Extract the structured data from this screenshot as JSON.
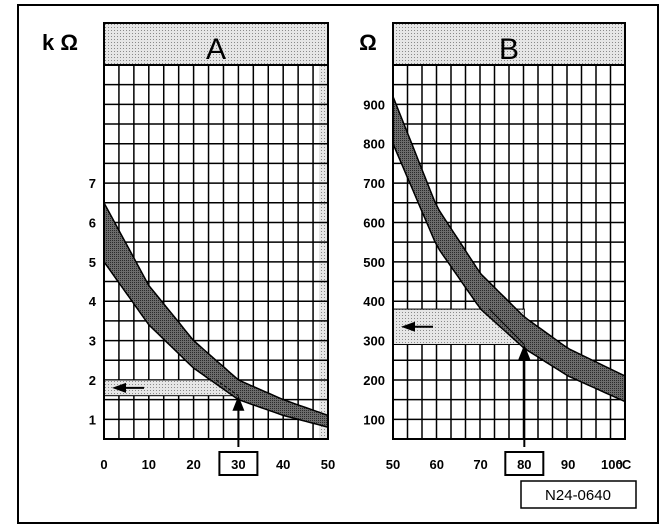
{
  "figure": {
    "reference": "N24-0640"
  },
  "chart_data": [
    {
      "type": "area",
      "panel_label": "A",
      "ylabel": "k Ω",
      "xlim": [
        0,
        50
      ],
      "ylim": [
        0.5,
        10
      ],
      "x_ticks": [
        "0",
        "10",
        "20",
        "30",
        "40",
        "50"
      ],
      "y_ticks": [
        "1",
        "2",
        "3",
        "4",
        "5",
        "6",
        "7"
      ],
      "series": [
        {
          "x": [
            0,
            10,
            20,
            30,
            40,
            50
          ],
          "upper": [
            6.5,
            4.4,
            3.0,
            2.0,
            1.5,
            1.1
          ],
          "lower": [
            5.0,
            3.4,
            2.3,
            1.5,
            1.1,
            0.8
          ]
        }
      ],
      "shaded_x_range": [
        48,
        50
      ],
      "highlight_x": "30",
      "highlight": {
        "x": 30,
        "y_range": [
          1.6,
          2.0
        ]
      }
    },
    {
      "type": "area",
      "panel_label": "B",
      "ylabel": "Ω",
      "xunit": "°C",
      "xlim": [
        50,
        103
      ],
      "ylim": [
        50,
        1000
      ],
      "x_ticks": [
        "50",
        "60",
        "70",
        "80",
        "90",
        "100"
      ],
      "y_ticks": [
        "100",
        "200",
        "300",
        "400",
        "500",
        "600",
        "700",
        "800",
        "900"
      ],
      "series": [
        {
          "x": [
            50,
            60,
            70,
            80,
            90,
            103
          ],
          "upper": [
            920,
            640,
            470,
            360,
            280,
            210
          ],
          "lower": [
            800,
            540,
            380,
            280,
            210,
            145
          ]
        }
      ],
      "highlight_x": "80",
      "highlight": {
        "x": 80,
        "y_range": [
          290,
          380
        ]
      }
    }
  ]
}
